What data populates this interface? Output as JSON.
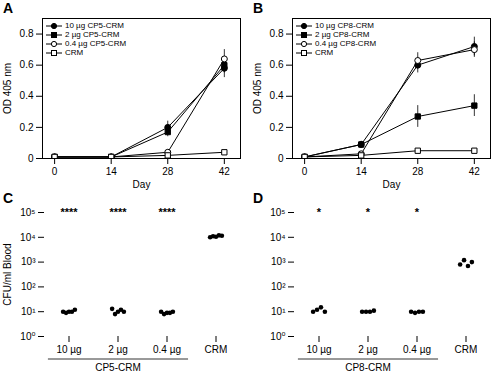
{
  "chart_data": [
    {
      "type": "line",
      "title": "A",
      "xlabel": "Day",
      "ylabel": "OD 405 nm",
      "x": [
        0,
        14,
        28,
        42
      ],
      "xlim": [
        -3,
        46
      ],
      "xticks": [
        0,
        14,
        28,
        42
      ],
      "ylim": [
        0,
        0.9
      ],
      "yticks": [
        0,
        0.2,
        0.4,
        0.6,
        0.8
      ],
      "color": "black",
      "legend": "upper left",
      "series": [
        {
          "name": "10 µg CP5-CRM",
          "marker": "circle",
          "values": [
            0.01,
            0.01,
            0.2,
            0.58
          ],
          "yerr": [
            0.005,
            0.005,
            0.04,
            0.06
          ]
        },
        {
          "name": "2 µg CP5-CRM",
          "marker": "square",
          "values": [
            0.01,
            0.01,
            0.17,
            0.6
          ],
          "yerr": [
            0.005,
            0.005,
            0.03,
            0.05
          ]
        },
        {
          "name": "0.4 µg CP5-CRM",
          "marker": "circle-open",
          "values": [
            0.01,
            0.01,
            0.04,
            0.64
          ],
          "yerr": [
            0.005,
            0.005,
            0.015,
            0.06
          ]
        },
        {
          "name": "CRM",
          "marker": "square-open",
          "values": [
            0.01,
            0.01,
            0.02,
            0.04
          ],
          "yerr": [
            0.005,
            0.005,
            0.005,
            0.01
          ]
        }
      ]
    },
    {
      "type": "line",
      "title": "B",
      "xlabel": "Day",
      "ylabel": "OD 405 nm",
      "x": [
        0,
        14,
        28,
        42
      ],
      "xlim": [
        -3,
        46
      ],
      "xticks": [
        0,
        14,
        28,
        42
      ],
      "ylim": [
        0,
        0.9
      ],
      "yticks": [
        0,
        0.2,
        0.4,
        0.6,
        0.8
      ],
      "color": "black",
      "legend": "upper left",
      "series": [
        {
          "name": "10 µg CP8-CRM",
          "marker": "circle",
          "values": [
            0.01,
            0.09,
            0.6,
            0.72
          ],
          "yerr": [
            0.005,
            0.02,
            0.05,
            0.06
          ]
        },
        {
          "name": "2 µg CP8-CRM",
          "marker": "square",
          "values": [
            0.01,
            0.09,
            0.27,
            0.34
          ],
          "yerr": [
            0.005,
            0.02,
            0.07,
            0.07
          ]
        },
        {
          "name": "0.4 µg CP8-CRM",
          "marker": "circle-open",
          "values": [
            0.01,
            0.03,
            0.63,
            0.7
          ],
          "yerr": [
            0.005,
            0.01,
            0.05,
            0.05
          ]
        },
        {
          "name": "CRM",
          "marker": "square-open",
          "values": [
            0.01,
            0.02,
            0.05,
            0.05
          ],
          "yerr": [
            0.005,
            0.005,
            0.01,
            0.01
          ]
        }
      ]
    },
    {
      "type": "scatter",
      "title": "C",
      "ylabel": "CFU/ml Blood",
      "xlabel": "CP5-CRM",
      "categories": [
        "10 µg",
        "2 µg",
        "0.4 µg",
        "CRM"
      ],
      "values": [
        [
          10,
          9,
          10,
          10,
          12
        ],
        [
          13,
          8,
          10,
          12,
          10
        ],
        [
          10,
          8,
          9,
          9,
          10
        ],
        [
          10000,
          11000,
          10500,
          12000,
          11500
        ]
      ],
      "log": "y",
      "ylim": [
        1,
        100000
      ],
      "yticks": [
        {
          "value": 1,
          "label": "10⁰"
        },
        {
          "value": 10,
          "label": "10¹"
        },
        {
          "value": 100,
          "label": "10²"
        },
        {
          "value": 1000,
          "label": "10³"
        },
        {
          "value": 10000,
          "label": "10⁴"
        },
        {
          "value": 100000,
          "label": "10⁵"
        }
      ],
      "color": "black",
      "annotations": [
        {
          "category": "10 µg",
          "y": 70000,
          "text": "****"
        },
        {
          "category": "2 µg",
          "y": 70000,
          "text": "****"
        },
        {
          "category": "0.4 µg",
          "y": 70000,
          "text": "****"
        }
      ]
    },
    {
      "type": "scatter",
      "title": "D",
      "xlabel": "CP8-CRM",
      "categories": [
        "10 µg",
        "2 µg",
        "0.4 µg",
        "CRM"
      ],
      "values": [
        [
          10,
          12,
          15,
          10
        ],
        [
          10,
          10,
          10,
          11
        ],
        [
          10,
          9,
          10,
          10
        ],
        [
          800,
          1200,
          700,
          1000
        ]
      ],
      "log": "y",
      "ylim": [
        1,
        100000
      ],
      "yticks": [
        {
          "value": 1,
          "label": "10⁰"
        },
        {
          "value": 10,
          "label": "10¹"
        },
        {
          "value": 100,
          "label": "10²"
        },
        {
          "value": 1000,
          "label": "10³"
        },
        {
          "value": 10000,
          "label": "10⁴"
        },
        {
          "value": 100000,
          "label": "10⁵"
        }
      ],
      "color": "black",
      "annotations": [
        {
          "category": "10 µg",
          "y": 70000,
          "text": "*"
        },
        {
          "category": "2 µg",
          "y": 70000,
          "text": "*"
        },
        {
          "category": "0.4 µg",
          "y": 70000,
          "text": "*"
        }
      ]
    }
  ]
}
